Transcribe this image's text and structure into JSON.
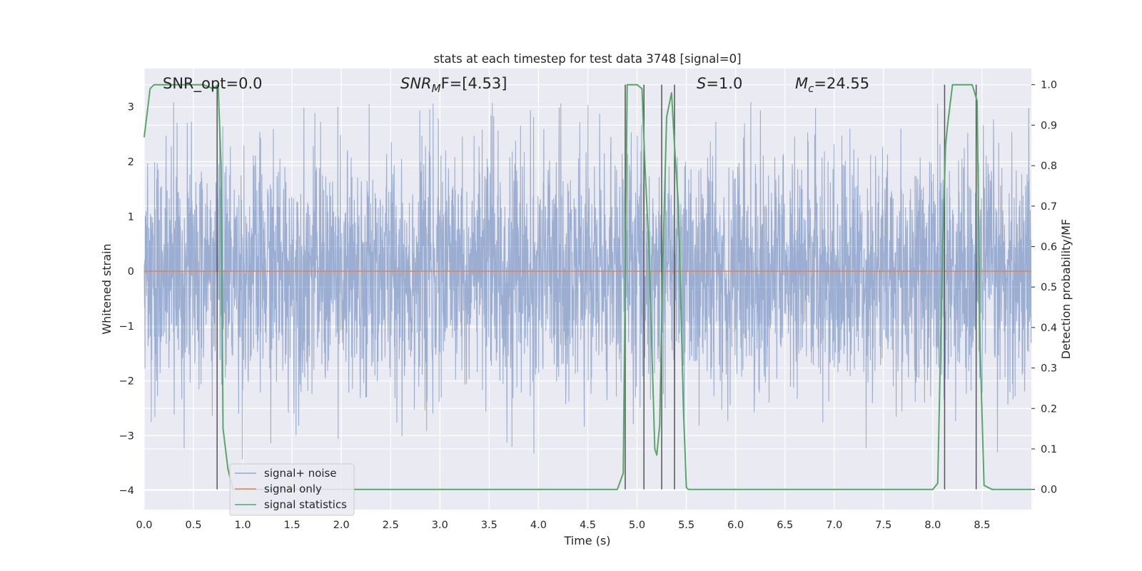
{
  "chart_data": {
    "type": "line",
    "title": "stats at each timestep for test data 3748 [signal=0]",
    "xlabel": "Time (s)",
    "ylabel": "Whitened strain",
    "y2label": "Detection probability/MF",
    "xlim": [
      0,
      9.0
    ],
    "ylim": [
      -4.35,
      3.7
    ],
    "y2lim": [
      -0.05,
      1.04
    ],
    "xticks": [
      0.0,
      0.5,
      1.0,
      1.5,
      2.0,
      2.5,
      3.0,
      3.5,
      4.0,
      4.5,
      5.0,
      5.5,
      6.0,
      6.5,
      7.0,
      7.5,
      8.0,
      8.5
    ],
    "xtick_labels": [
      "0.0",
      "0.5",
      "1.0",
      "1.5",
      "2.0",
      "2.5",
      "3.0",
      "3.5",
      "4.0",
      "4.5",
      "5.0",
      "5.5",
      "6.0",
      "6.5",
      "7.0",
      "7.5",
      "8.0",
      "8.5"
    ],
    "yticks": [
      3,
      2,
      1,
      0,
      -1,
      -2,
      -3,
      -4
    ],
    "ytick_labels": [
      "3",
      "2",
      "1",
      "0",
      "−1",
      "−2",
      "−3",
      "−4"
    ],
    "y2ticks": [
      1.0,
      0.9,
      0.8,
      0.7,
      0.6,
      0.5,
      0.4,
      0.3,
      0.2,
      0.1,
      0.0
    ],
    "y2tick_labels": [
      "1.0",
      "0.9",
      "0.8",
      "0.7",
      "0.6",
      "0.5",
      "0.4",
      "0.3",
      "0.2",
      "0.1",
      "0.0"
    ],
    "grid": true,
    "legend_position": "lower-left",
    "annotations": {
      "snr_opt": "SNR_opt=0.0",
      "snr_mf_main": "SNR",
      "snr_mf_sub": "M",
      "snr_mf_rest": "F=[4.53]",
      "s_main": "S",
      "s_rest": "=1.0",
      "mc_main": "M",
      "mc_sub": "c",
      "mc_rest": "=24.55"
    },
    "noise_envelope": {
      "typical_amplitude": 1.1,
      "peak_amplitude": 3.1,
      "min_value": -4.0,
      "approx_sample_rate_hz": 2048
    },
    "series": [
      {
        "name": "signal+ noise",
        "color": "#4c72b0",
        "description_kind": "dense whitened noise"
      },
      {
        "name": "signal only",
        "color": "#dd8452",
        "x": [
          0,
          9.0
        ],
        "y": [
          0,
          0
        ]
      },
      {
        "name": "signal statistics",
        "color": "#55a868",
        "axis": "right",
        "x": [
          0.0,
          0.06,
          0.1,
          0.15,
          0.2,
          0.3,
          0.4,
          0.5,
          0.6,
          0.7,
          0.75,
          0.78,
          0.8,
          0.85,
          0.9,
          1.0,
          1.5,
          2.0,
          2.5,
          3.0,
          3.5,
          4.0,
          4.5,
          4.8,
          4.86,
          4.9,
          4.95,
          5.0,
          5.05,
          5.08,
          5.12,
          5.18,
          5.2,
          5.23,
          5.26,
          5.3,
          5.35,
          5.38,
          5.42,
          5.47,
          5.5,
          5.52,
          5.55,
          5.6,
          6.0,
          6.5,
          7.0,
          7.5,
          8.0,
          8.05,
          8.1,
          8.13,
          8.15,
          8.2,
          8.25,
          8.3,
          8.35,
          8.4,
          8.45,
          8.48,
          8.52,
          8.6,
          9.0
        ],
        "y": [
          0.87,
          0.99,
          1.0,
          1.0,
          1.0,
          1.0,
          1.0,
          1.0,
          1.0,
          0.99,
          1.0,
          0.8,
          0.15,
          0.05,
          0.0,
          0.0,
          0.0,
          0.0,
          0.0,
          0.0,
          0.0,
          0.0,
          0.0,
          0.0,
          0.04,
          1.0,
          1.0,
          1.0,
          0.99,
          0.8,
          0.6,
          0.1,
          0.085,
          0.16,
          0.55,
          0.92,
          0.98,
          0.85,
          0.7,
          0.2,
          0.005,
          0.0,
          0.0,
          0.0,
          0.0,
          0.0,
          0.0,
          0.0,
          0.0,
          0.015,
          0.6,
          0.85,
          0.9,
          1.0,
          1.0,
          1.0,
          1.0,
          1.0,
          0.96,
          0.35,
          0.01,
          0.0,
          0.0
        ]
      }
    ],
    "vertical_markers": [
      0.74,
      4.88,
      5.07,
      5.25,
      5.38,
      8.12,
      8.44
    ]
  }
}
